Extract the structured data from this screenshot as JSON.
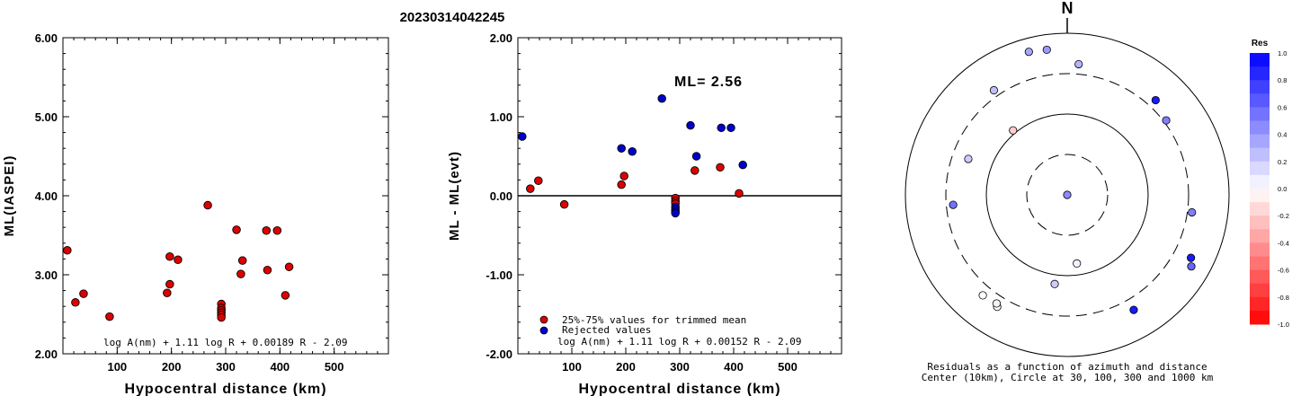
{
  "title": "20230314042245",
  "chart_data": [
    {
      "type": "scatter",
      "xlabel": "Hypocentral distance (km)",
      "ylabel": "ML(IASPEI)",
      "xlim": [
        0,
        600
      ],
      "ylim": [
        2.0,
        6.0
      ],
      "xticks": [
        "100",
        "200",
        "300",
        "400",
        "500"
      ],
      "yticks": [
        "2.00",
        "3.00",
        "4.00",
        "5.00",
        "6.00"
      ],
      "formula": "log A(nm) + 1.11 log R + 0.00189 R - 2.09",
      "series": [
        {
          "color": "#dd0000",
          "points": [
            [
              8,
              3.31
            ],
            [
              23,
              2.65
            ],
            [
              38,
              2.76
            ],
            [
              86,
              2.47
            ],
            [
              192,
              2.77
            ],
            [
              197,
              3.23
            ],
            [
              197,
              2.88
            ],
            [
              212,
              3.19
            ],
            [
              267,
              3.88
            ],
            [
              292,
              2.63
            ],
            [
              292,
              2.58
            ],
            [
              292,
              2.55
            ],
            [
              292,
              2.52
            ],
            [
              292,
              2.49
            ],
            [
              292,
              2.46
            ],
            [
              320,
              3.57
            ],
            [
              328,
              3.01
            ],
            [
              331,
              3.18
            ],
            [
              375,
              3.56
            ],
            [
              377,
              3.06
            ],
            [
              395,
              3.56
            ],
            [
              410,
              2.74
            ],
            [
              417,
              3.1
            ]
          ]
        }
      ]
    },
    {
      "type": "scatter",
      "xlabel": "Hypocentral distance (km)",
      "ylabel": "ML - ML(evt)",
      "xlim": [
        0,
        600
      ],
      "ylim": [
        -2.0,
        2.0
      ],
      "xticks": [
        "100",
        "200",
        "300",
        "400",
        "500"
      ],
      "yticks": [
        "-2.00",
        "-1.00",
        "0.00",
        "1.00",
        "2.00"
      ],
      "annotation": "ML= 2.56",
      "formula": "log A(nm) + 1.11 log R + 0.00152 R - 2.09",
      "legend": [
        "25%-75% values for trimmed mean",
        "Rejected values"
      ],
      "series": [
        {
          "name": "25%-75% values for trimmed mean",
          "color": "#dd0000",
          "points": [
            [
              23,
              0.09
            ],
            [
              38,
              0.19
            ],
            [
              86,
              -0.11
            ],
            [
              192,
              0.14
            ],
            [
              197,
              0.25
            ],
            [
              292,
              -0.03
            ],
            [
              292,
              -0.07
            ],
            [
              292,
              -0.1
            ],
            [
              328,
              0.32
            ],
            [
              375,
              0.36
            ],
            [
              410,
              0.03
            ]
          ]
        },
        {
          "name": "Rejected values",
          "color": "#0000cc",
          "points": [
            [
              8,
              0.75
            ],
            [
              192,
              0.6
            ],
            [
              212,
              0.56
            ],
            [
              267,
              1.23
            ],
            [
              292,
              -0.14
            ],
            [
              292,
              -0.17
            ],
            [
              292,
              -0.2
            ],
            [
              292,
              -0.22
            ],
            [
              320,
              0.89
            ],
            [
              331,
              0.5
            ],
            [
              377,
              0.86
            ],
            [
              395,
              0.86
            ],
            [
              417,
              0.39
            ]
          ]
        }
      ]
    },
    {
      "type": "polar",
      "north_label": "N",
      "caption_line1": "Residuals as a function of azimuth and distance",
      "caption_line2": "Center (10km), Circle at 30, 100, 300 and 1000 km",
      "colorbar_title": "Res",
      "colorbar_ticks": [
        "1.0",
        "0.8",
        "0.6",
        "0.4",
        "0.2",
        "0.0",
        "-0.2",
        "-0.4",
        "-0.6",
        "-0.8",
        "-1.0"
      ],
      "points": [
        {
          "az": 357,
          "dist_km": 10,
          "res": 0.45
        },
        {
          "az": 172,
          "dist_km": 72,
          "res": 0.05
        },
        {
          "az": 188,
          "dist_km": 130,
          "res": 0.2
        },
        {
          "az": 98,
          "dist_km": 360,
          "res": 0.5
        },
        {
          "az": 117,
          "dist_km": 520,
          "res": 0.9
        },
        {
          "az": 120,
          "dist_km": 590,
          "res": 0.6
        },
        {
          "az": 150,
          "dist_km": 440,
          "res": 0.9
        },
        {
          "az": 212,
          "dist_km": 430,
          "res": 0.0
        },
        {
          "az": 213,
          "dist_km": 400,
          "res": 0.05
        },
        {
          "az": 220,
          "dist_km": 420,
          "res": 0.0
        },
        {
          "az": 265,
          "dist_km": 260,
          "res": 0.55
        },
        {
          "az": 290,
          "dist_km": 200,
          "res": 0.2
        },
        {
          "az": 320,
          "dist_km": 110,
          "res": -0.2
        },
        {
          "az": 325,
          "dist_km": 380,
          "res": 0.25
        },
        {
          "az": 345,
          "dist_km": 680,
          "res": 0.35
        },
        {
          "az": 352,
          "dist_km": 650,
          "res": 0.4
        },
        {
          "az": 5,
          "dist_km": 420,
          "res": 0.3
        },
        {
          "az": 43,
          "dist_km": 400,
          "res": 0.9
        },
        {
          "az": 53,
          "dist_km": 340,
          "res": 0.5
        }
      ]
    }
  ]
}
